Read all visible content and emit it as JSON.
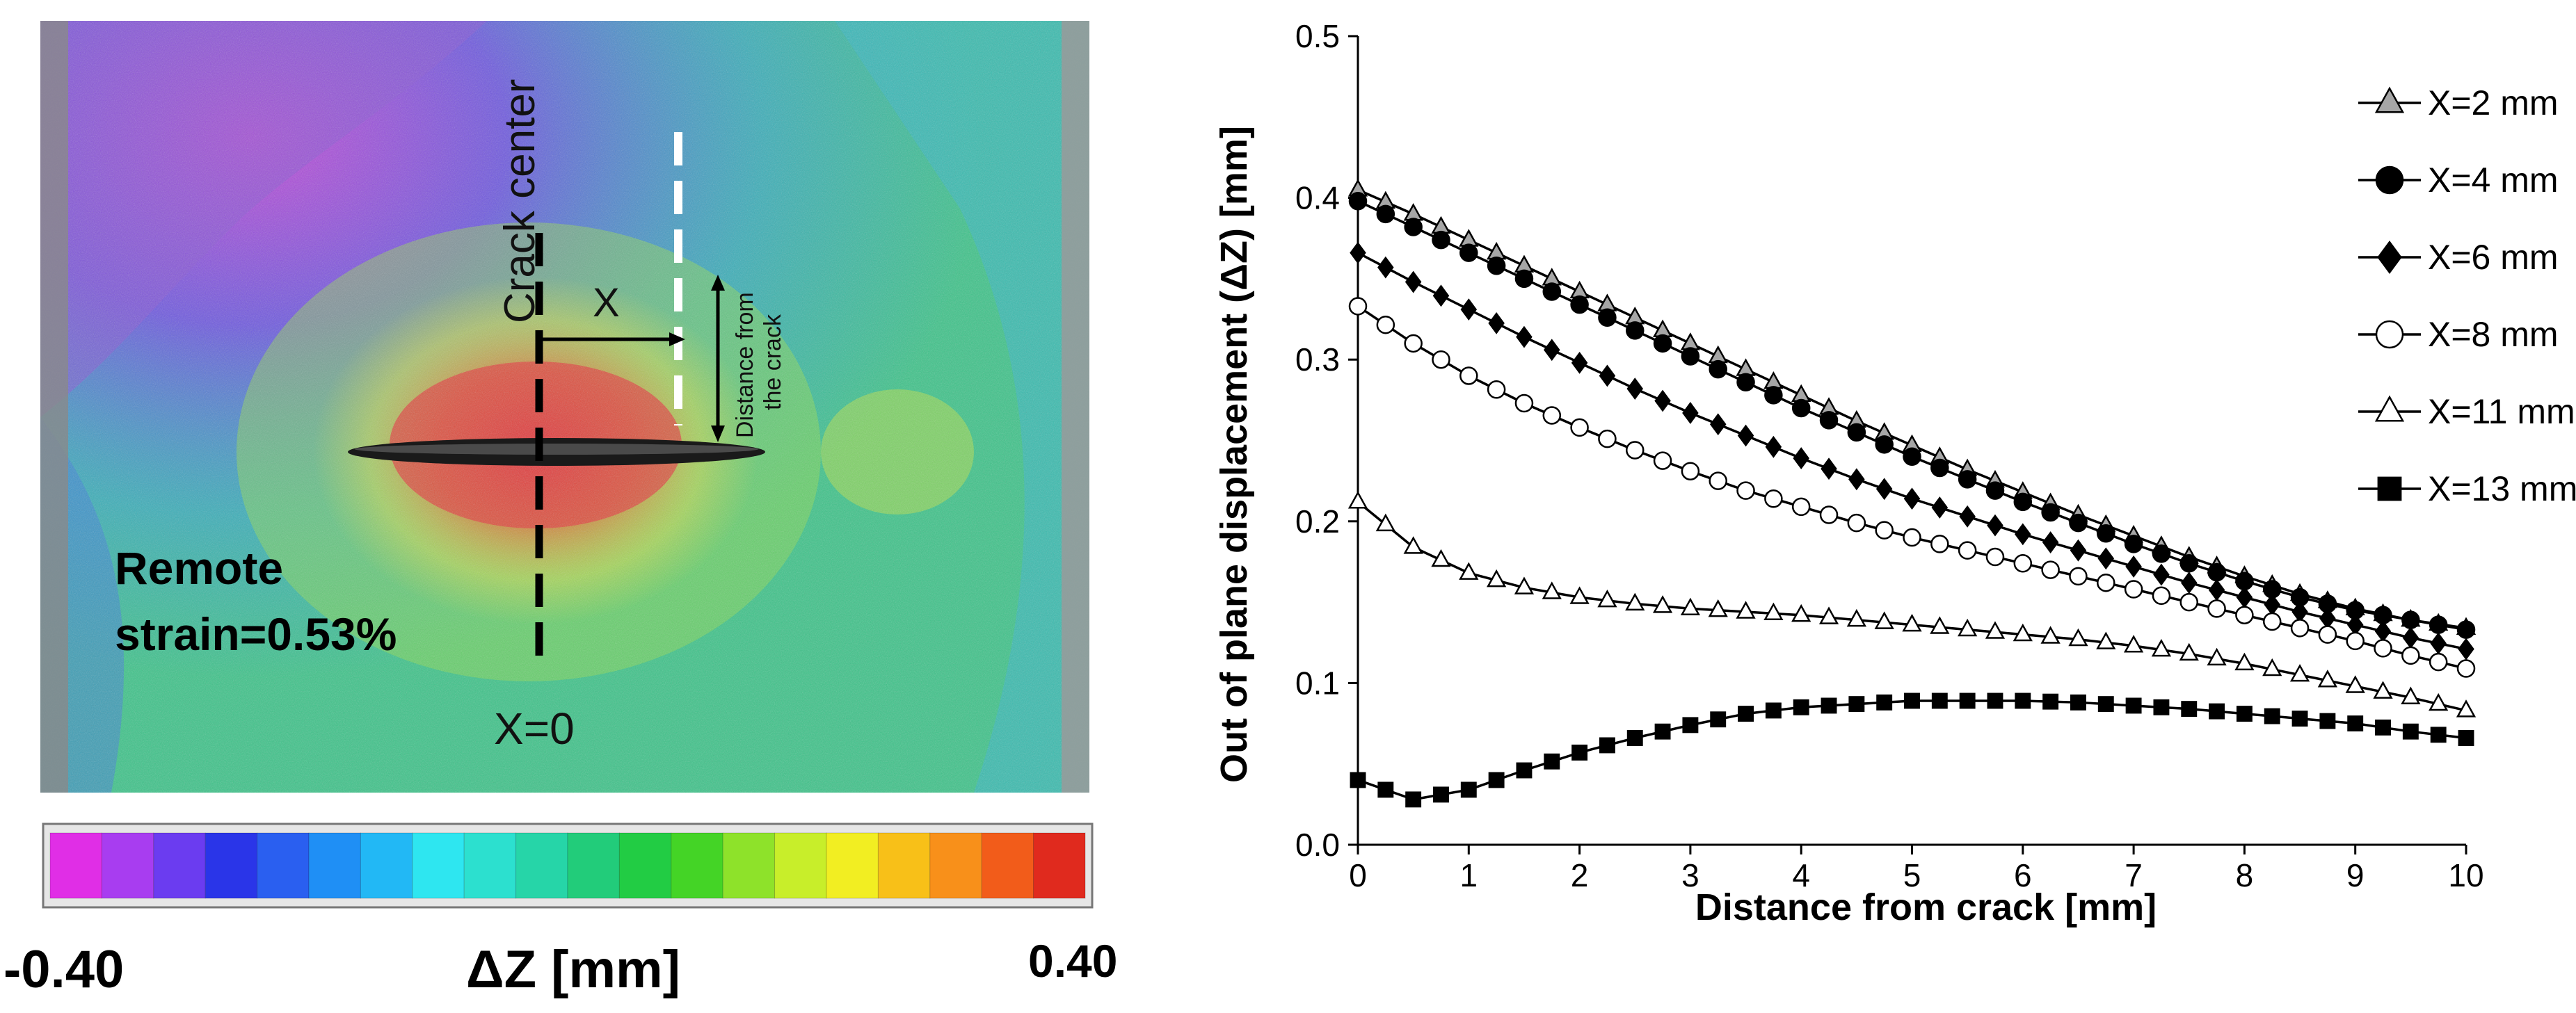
{
  "dic_panel": {
    "annotations": {
      "crack_center": "Crack center",
      "x_label": "X",
      "distance_label_line1": "Distance from",
      "distance_label_line2": "the crack",
      "remote_strain_line1": "Remote",
      "remote_strain_line2": "strain=0.53%",
      "x_zero": "X=0"
    },
    "colorbar": {
      "min_label": "-0.40",
      "max_label": "0.40",
      "title": "ΔZ [mm]",
      "range": [
        -0.4,
        0.4
      ],
      "colors": [
        "#e02ee6",
        "#a83df0",
        "#6b3cf0",
        "#2a35e8",
        "#2a5ff0",
        "#1f8ff5",
        "#22b8f5",
        "#2ee6f0",
        "#2ce0cf",
        "#26d5a8",
        "#22cc7a",
        "#22cc44",
        "#44d426",
        "#8ee22a",
        "#c8ee2a",
        "#f2ee22",
        "#f8c018",
        "#f8901a",
        "#f25c1a",
        "#e02a1e"
      ]
    }
  },
  "chart_data": {
    "type": "line",
    "title": "",
    "xlabel": "Distance from crack [mm]",
    "ylabel": "Out of plane displacement (ΔZ) [mm]",
    "xlim": [
      0,
      10
    ],
    "ylim": [
      0,
      0.5
    ],
    "xticks": [
      0,
      1,
      2,
      3,
      4,
      5,
      6,
      7,
      8,
      9,
      10
    ],
    "yticks": [
      0.0,
      0.1,
      0.2,
      0.3,
      0.4,
      0.5
    ],
    "ytick_labels": [
      "0.0",
      "0.1",
      "0.2",
      "0.3",
      "0.4",
      "0.5"
    ],
    "legend_position": "top-right",
    "grid": false,
    "series": [
      {
        "name": "X=2 mm",
        "marker": "triangle-filled",
        "x": [
          0,
          0.5,
          1,
          1.5,
          2,
          2.5,
          3,
          3.5,
          4,
          4.5,
          5,
          5.5,
          6,
          6.5,
          7,
          7.5,
          8,
          8.5,
          9,
          9.5,
          10
        ],
        "y": [
          0.405,
          0.39,
          0.374,
          0.358,
          0.342,
          0.326,
          0.31,
          0.294,
          0.278,
          0.262,
          0.247,
          0.232,
          0.218,
          0.204,
          0.191,
          0.178,
          0.166,
          0.155,
          0.146,
          0.139,
          0.134
        ]
      },
      {
        "name": "X=4 mm",
        "marker": "circle-filled",
        "x": [
          0,
          0.5,
          1,
          1.5,
          2,
          2.5,
          3,
          3.5,
          4,
          4.5,
          5,
          5.5,
          6,
          6.5,
          7,
          7.5,
          8,
          8.5,
          9,
          9.5,
          10
        ],
        "y": [
          0.398,
          0.382,
          0.366,
          0.35,
          0.334,
          0.318,
          0.302,
          0.286,
          0.27,
          0.255,
          0.24,
          0.226,
          0.212,
          0.199,
          0.186,
          0.174,
          0.163,
          0.153,
          0.145,
          0.139,
          0.133
        ]
      },
      {
        "name": "X=6 mm",
        "marker": "diamond-filled",
        "x": [
          0,
          0.5,
          1,
          1.5,
          2,
          2.5,
          3,
          3.5,
          4,
          4.5,
          5,
          5.5,
          6,
          6.5,
          7,
          7.5,
          8,
          8.5,
          9,
          9.5,
          10
        ],
        "y": [
          0.366,
          0.348,
          0.331,
          0.314,
          0.298,
          0.282,
          0.267,
          0.253,
          0.239,
          0.226,
          0.214,
          0.203,
          0.192,
          0.182,
          0.172,
          0.162,
          0.153,
          0.144,
          0.136,
          0.128,
          0.121
        ]
      },
      {
        "name": "X=8 mm",
        "marker": "circle-open",
        "x": [
          0,
          0.5,
          1,
          1.5,
          2,
          2.5,
          3,
          3.5,
          4,
          4.5,
          5,
          5.5,
          6,
          6.5,
          7,
          7.5,
          8,
          8.5,
          9,
          9.5,
          10
        ],
        "y": [
          0.333,
          0.31,
          0.29,
          0.273,
          0.258,
          0.244,
          0.231,
          0.219,
          0.209,
          0.199,
          0.19,
          0.182,
          0.174,
          0.166,
          0.158,
          0.15,
          0.142,
          0.134,
          0.126,
          0.117,
          0.109
        ]
      },
      {
        "name": "X=11 mm",
        "marker": "triangle-open",
        "x": [
          0,
          0.5,
          1,
          1.5,
          2,
          2.5,
          3,
          3.5,
          4,
          4.5,
          5,
          5.5,
          6,
          6.5,
          7,
          7.5,
          8,
          8.5,
          9,
          9.5,
          10
        ],
        "y": [
          0.212,
          0.184,
          0.168,
          0.159,
          0.153,
          0.149,
          0.146,
          0.144,
          0.142,
          0.139,
          0.136,
          0.133,
          0.13,
          0.127,
          0.123,
          0.118,
          0.112,
          0.105,
          0.098,
          0.091,
          0.083
        ]
      },
      {
        "name": "X=13 mm",
        "marker": "square-filled",
        "x": [
          0,
          0.5,
          1,
          1.5,
          2,
          2.5,
          3,
          3.5,
          4,
          4.5,
          5,
          5.5,
          6,
          6.5,
          7,
          7.5,
          8,
          8.5,
          9,
          9.5,
          10
        ],
        "y": [
          0.04,
          0.028,
          0.034,
          0.046,
          0.057,
          0.066,
          0.074,
          0.081,
          0.085,
          0.087,
          0.089,
          0.089,
          0.089,
          0.088,
          0.086,
          0.084,
          0.081,
          0.078,
          0.075,
          0.07,
          0.066
        ]
      }
    ]
  }
}
